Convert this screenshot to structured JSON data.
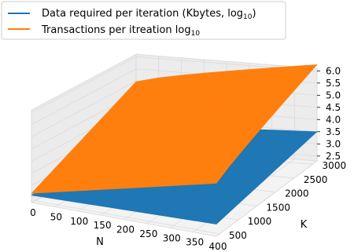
{
  "colors": {
    "series_1": "#1f77b4",
    "series_2": "#ff7f0e",
    "pane": "#efefef",
    "grid": "#d9d9d9"
  },
  "legend": {
    "items": [
      {
        "text": "Data required per iteration (Kbytes, log",
        "sub": "10",
        "tail": ")"
      },
      {
        "text": "Transactions per itreation log",
        "sub": "10",
        "tail": ""
      }
    ]
  },
  "chart_data": {
    "type": "surface3d",
    "title": "",
    "xlabel": "N",
    "ylabel": "K",
    "zlabel": "",
    "x_ticks": [
      "0",
      "50",
      "100",
      "150",
      "200",
      "250",
      "300",
      "350",
      "400"
    ],
    "y_ticks": [
      "500",
      "1000",
      "1500",
      "2000",
      "2500",
      "3000"
    ],
    "z_ticks": [
      "2.5",
      "3.0",
      "3.5",
      "4.0",
      "4.5",
      "5.0",
      "5.5",
      "6.0"
    ],
    "xlim": [
      0,
      400
    ],
    "ylim": [
      0,
      3000
    ],
    "zlim": [
      2.3,
      6.1
    ],
    "legend_position": "top-left",
    "series": [
      {
        "name": "Data required per iteration (Kbytes, log10)",
        "color": "#1f77b4",
        "corner_values": {
          "x_min_y_min": 2.6,
          "x_max_y_min": 2.8,
          "x_min_y_max": 3.2,
          "x_max_y_max": 3.5
        }
      },
      {
        "name": "Transactions per itreation log10",
        "color": "#ff7f0e",
        "corner_values": {
          "x_min_y_min": 2.9,
          "x_max_y_min": 4.7,
          "x_min_y_max": 5.2,
          "x_max_y_max": 6.0
        }
      }
    ]
  }
}
